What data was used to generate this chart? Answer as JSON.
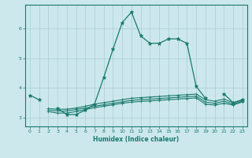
{
  "xlabel": "Humidex (Indice chaleur)",
  "background_color": "#cce8ec",
  "grid_color": "#aacdd4",
  "line_color": "#1a7a6e",
  "x_values": [
    0,
    1,
    2,
    3,
    4,
    5,
    6,
    7,
    8,
    9,
    10,
    11,
    12,
    13,
    14,
    15,
    16,
    17,
    18,
    19,
    20,
    21,
    22,
    23
  ],
  "series1": [
    3.75,
    3.6,
    null,
    3.3,
    3.1,
    3.1,
    3.25,
    3.45,
    4.35,
    5.3,
    6.2,
    6.55,
    5.75,
    5.5,
    5.5,
    5.65,
    5.65,
    5.5,
    4.05,
    3.65,
    null,
    3.8,
    3.5,
    3.6
  ],
  "series2": [
    null,
    null,
    3.3,
    3.28,
    3.28,
    3.32,
    3.38,
    3.45,
    3.5,
    3.55,
    3.6,
    3.65,
    3.67,
    3.69,
    3.71,
    3.73,
    3.75,
    3.77,
    3.79,
    3.6,
    3.55,
    3.62,
    3.5,
    3.58
  ],
  "series3": [
    null,
    null,
    3.25,
    3.22,
    3.22,
    3.27,
    3.32,
    3.38,
    3.43,
    3.48,
    3.53,
    3.58,
    3.6,
    3.62,
    3.64,
    3.66,
    3.68,
    3.7,
    3.72,
    3.52,
    3.48,
    3.55,
    3.45,
    3.55
  ],
  "series4": [
    null,
    null,
    3.2,
    3.15,
    3.15,
    3.2,
    3.27,
    3.33,
    3.38,
    3.43,
    3.48,
    3.52,
    3.54,
    3.56,
    3.58,
    3.6,
    3.62,
    3.64,
    3.66,
    3.45,
    3.42,
    3.48,
    3.42,
    3.52
  ],
  "ylim": [
    2.7,
    6.8
  ],
  "yticks": [
    3,
    4,
    5,
    6
  ],
  "xlim": [
    -0.5,
    23.5
  ]
}
